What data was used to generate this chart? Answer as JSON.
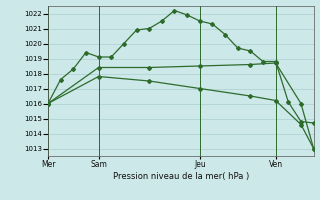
{
  "background_color": "#cde8e8",
  "grid_color": "#aacfcf",
  "line_color": "#2d6b2d",
  "title": "Pression niveau de la mer( hPa )",
  "ylim": [
    1012.5,
    1022.5
  ],
  "yticks": [
    1013,
    1014,
    1015,
    1016,
    1017,
    1018,
    1019,
    1020,
    1021,
    1022
  ],
  "day_labels": [
    "Mer",
    "Sam",
    "Jeu",
    "Ven"
  ],
  "day_positions": [
    0,
    4,
    12,
    18
  ],
  "series1_x": [
    0,
    1,
    2,
    3,
    4,
    5,
    6,
    7,
    8,
    9,
    10,
    11,
    12,
    13,
    14,
    15,
    16,
    17,
    18,
    19,
    20,
    21
  ],
  "series1_y": [
    1016.0,
    1017.6,
    1018.3,
    1019.4,
    1019.1,
    1019.1,
    1020.0,
    1020.9,
    1021.0,
    1021.5,
    1022.2,
    1021.9,
    1021.5,
    1021.3,
    1020.6,
    1019.7,
    1019.5,
    1018.8,
    1018.8,
    1016.1,
    1014.8,
    1014.7
  ],
  "series2_x": [
    0,
    4,
    8,
    12,
    16,
    18,
    20,
    21
  ],
  "series2_y": [
    1016.0,
    1018.4,
    1018.4,
    1018.5,
    1018.6,
    1018.7,
    1016.0,
    1013.0
  ],
  "series3_x": [
    0,
    4,
    8,
    12,
    16,
    18,
    20,
    21
  ],
  "series3_y": [
    1016.0,
    1017.8,
    1017.5,
    1017.0,
    1016.5,
    1016.2,
    1014.6,
    1013.0
  ],
  "xlim": [
    0,
    21
  ],
  "figsize": [
    3.2,
    2.0
  ],
  "dpi": 100
}
